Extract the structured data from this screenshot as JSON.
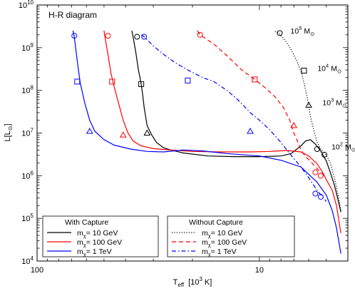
{
  "chart_data": {
    "type": "line",
    "title": "H-R diagram",
    "xlabel": "T_eff [10^3 K]",
    "ylabel": "L[L_sun]",
    "x_scale": "log",
    "y_scale": "log",
    "xlim": [
      100,
      4
    ],
    "ylim": [
      10000,
      10000000000
    ],
    "x_tick_labels": [
      {
        "value": 100,
        "label": "100"
      },
      {
        "value": 10,
        "label": "10"
      }
    ],
    "y_tick_labels": [
      {
        "value": 10000,
        "base": "10",
        "exp": "4"
      },
      {
        "value": 100000,
        "base": "10",
        "exp": "5"
      },
      {
        "value": 1000000,
        "base": "10",
        "exp": "6"
      },
      {
        "value": 10000000,
        "base": "10",
        "exp": "7"
      },
      {
        "value": 100000000,
        "base": "10",
        "exp": "8"
      },
      {
        "value": 1000000000,
        "base": "10",
        "exp": "9"
      },
      {
        "value": 10000000000,
        "base": "10",
        "exp": "10"
      }
    ],
    "series": [
      {
        "name": "m_χ = 10 GeV (with capture)",
        "color": "#000000",
        "dash": "solid",
        "points": [
          [
            37.5,
            2500000000
          ],
          [
            37,
            1800000000
          ],
          [
            36,
            800000000
          ],
          [
            35,
            300000000
          ],
          [
            34,
            140000000
          ],
          [
            33.5,
            80000000
          ],
          [
            33,
            40000000
          ],
          [
            32,
            15000000
          ],
          [
            30.5,
            9000000
          ],
          [
            29,
            6000000
          ],
          [
            27,
            4500000
          ],
          [
            25,
            4000000
          ],
          [
            22,
            3400000
          ],
          [
            17,
            2900000
          ],
          [
            13,
            2800000
          ],
          [
            10,
            2800000
          ],
          [
            8,
            2900000
          ],
          [
            7.2,
            3300000
          ],
          [
            6.5,
            5000000
          ],
          [
            6.2,
            6500000
          ],
          [
            5.9,
            7000000
          ],
          [
            5.6,
            5500000
          ],
          [
            5.3,
            3800000
          ],
          [
            5,
            2200000
          ],
          [
            4.8,
            1200000
          ],
          [
            4.6,
            600000
          ],
          [
            4.45,
            300000
          ],
          [
            4.3,
            140000
          ]
        ],
        "markers": [
          {
            "shape": "circle",
            "x": 35.5,
            "y": 1800000000
          },
          {
            "shape": "square",
            "x": 34,
            "y": 140000000
          },
          {
            "shape": "triangle",
            "x": 32,
            "y": 10000000
          }
        ]
      },
      {
        "name": "m_χ = 100 GeV (with capture)",
        "color": "#ff0000",
        "dash": "solid",
        "points": [
          [
            50,
            2500000000
          ],
          [
            49.5,
            1800000000
          ],
          [
            48,
            700000000
          ],
          [
            46.5,
            250000000
          ],
          [
            45,
            120000000
          ],
          [
            43,
            50000000
          ],
          [
            41,
            20000000
          ],
          [
            39,
            10000000
          ],
          [
            37,
            6500000
          ],
          [
            34,
            5000000
          ],
          [
            30,
            4300000
          ],
          [
            25,
            4000000
          ],
          [
            20,
            3700000
          ],
          [
            15,
            3600000
          ],
          [
            11,
            3600000
          ],
          [
            9,
            3700000
          ],
          [
            7.5,
            3900000
          ],
          [
            6.5,
            3600000
          ],
          [
            6,
            2900000
          ],
          [
            5.5,
            1900000
          ],
          [
            5.2,
            1200000
          ],
          [
            5,
            800000
          ],
          [
            4.7,
            450000
          ],
          [
            4.5,
            200000
          ],
          [
            4.3,
            45000
          ]
        ],
        "markers": [
          {
            "shape": "circle",
            "x": 48,
            "y": 1900000000
          },
          {
            "shape": "square",
            "x": 46,
            "y": 160000000
          },
          {
            "shape": "triangle",
            "x": 41,
            "y": 9000000
          }
        ]
      },
      {
        "name": "m_χ = 1 TeV (with capture)",
        "color": "#0000ff",
        "dash": "solid",
        "points": [
          [
            69,
            2500000000
          ],
          [
            68,
            1800000000
          ],
          [
            66,
            500000000
          ],
          [
            64,
            150000000
          ],
          [
            61,
            50000000
          ],
          [
            58,
            20000000
          ],
          [
            55,
            11000000
          ],
          [
            50,
            7000000
          ],
          [
            45,
            5200000
          ],
          [
            38,
            4200000
          ],
          [
            32,
            3700000
          ],
          [
            27,
            3600000
          ],
          [
            22,
            4000000
          ],
          [
            18,
            3800000
          ],
          [
            14,
            3300000
          ],
          [
            10,
            2900000
          ],
          [
            8,
            2300000
          ],
          [
            6.5,
            1600000
          ],
          [
            5.5,
            700000
          ],
          [
            5,
            350000
          ],
          [
            4.7,
            150000
          ],
          [
            4.5,
            60000
          ],
          [
            4.3,
            15000
          ]
        ],
        "markers": [
          {
            "shape": "circle",
            "x": 68,
            "y": 1900000000
          },
          {
            "shape": "square",
            "x": 66,
            "y": 160000000
          },
          {
            "shape": "triangle",
            "x": 58,
            "y": 11000000
          }
        ]
      },
      {
        "name": "m_χ = 10 GeV (without capture)",
        "color": "#000000",
        "dash": "dotted",
        "points": [
          [
            8.5,
            2400000000
          ],
          [
            8.2,
            2200000000
          ],
          [
            7.6,
            1400000000
          ],
          [
            7.2,
            900000000
          ],
          [
            6.8,
            500000000
          ],
          [
            6.5,
            280000000
          ],
          [
            6.3,
            150000000
          ],
          [
            6.1,
            70000000
          ],
          [
            6,
            45000000
          ],
          [
            5.9,
            25000000
          ],
          [
            5.7,
            12000000
          ],
          [
            5.5,
            6000000
          ],
          [
            5.3,
            4200000
          ],
          [
            5,
            3000000
          ],
          [
            4.8,
            2000000
          ],
          [
            4.6,
            900000
          ],
          [
            4.45,
            400000
          ],
          [
            4.3,
            150000
          ]
        ],
        "markers": [
          {
            "shape": "circle",
            "x": 8.1,
            "y": 2200000000
          },
          {
            "shape": "square",
            "x": 6.3,
            "y": 290000000
          },
          {
            "shape": "triangle",
            "x": 6,
            "y": 45000000
          },
          {
            "shape": "circle",
            "x": 5.5,
            "y": 4200000
          },
          {
            "shape": "circle",
            "x": 5.1,
            "y": 3100000
          }
        ]
      },
      {
        "name": "m_χ = 100 GeV (without capture)",
        "color": "#ff0000",
        "dash": "dashed",
        "points": [
          [
            19,
            2500000000
          ],
          [
            18.5,
            2000000000
          ],
          [
            16,
            1200000000
          ],
          [
            14,
            650000000
          ],
          [
            12,
            300000000
          ],
          [
            10.5,
            180000000
          ],
          [
            9.5,
            120000000
          ],
          [
            8.5,
            70000000
          ],
          [
            7.8,
            40000000
          ],
          [
            7.3,
            20000000
          ],
          [
            7,
            10000000
          ],
          [
            6.7,
            6000000
          ],
          [
            6.5,
            4000000
          ],
          [
            6.2,
            2800000
          ],
          [
            5.9,
            2200000
          ],
          [
            5.6,
            1600000
          ],
          [
            5.3,
            1200000
          ],
          [
            5,
            900000
          ]
        ],
        "markers": [
          {
            "shape": "circle",
            "x": 18.5,
            "y": 2000000000
          },
          {
            "shape": "square",
            "x": 10.5,
            "y": 180000000
          },
          {
            "shape": "triangle",
            "x": 7,
            "y": 15000000
          },
          {
            "shape": "circle",
            "x": 5.6,
            "y": 1200000
          },
          {
            "shape": "circle",
            "x": 5.3,
            "y": 1000000
          }
        ]
      },
      {
        "name": "m_χ = 1 TeV (without capture)",
        "color": "#0000ff",
        "dash": "dashdot",
        "points": [
          [
            34,
            2000000000
          ],
          [
            33,
            1800000000
          ],
          [
            30,
            1100000000
          ],
          [
            27,
            700000000
          ],
          [
            24,
            450000000
          ],
          [
            21,
            300000000
          ],
          [
            18,
            200000000
          ],
          [
            16,
            160000000
          ],
          [
            14,
            100000000
          ],
          [
            12.5,
            60000000
          ],
          [
            11,
            30000000
          ],
          [
            10,
            20000000
          ],
          [
            9,
            12000000
          ],
          [
            8,
            6000000
          ],
          [
            7.2,
            3000000
          ],
          [
            6.5,
            1600000
          ],
          [
            6,
            900000
          ],
          [
            5.5,
            450000
          ],
          [
            5.2,
            320000
          ],
          [
            5,
            250000
          ]
        ],
        "markers": [
          {
            "shape": "circle",
            "x": 33,
            "y": 1800000000
          },
          {
            "shape": "square",
            "x": 21,
            "y": 170000000
          },
          {
            "shape": "triangle",
            "x": 11,
            "y": 11000000
          },
          {
            "shape": "circle",
            "x": 5.6,
            "y": 380000
          },
          {
            "shape": "circle",
            "x": 5.3,
            "y": 320000
          }
        ]
      }
    ],
    "annotations": [
      {
        "base": "10",
        "exp": "5",
        "unit": "M",
        "sub": "⊙",
        "x": 7.8,
        "y": 2400000000
      },
      {
        "base": "10",
        "exp": "4",
        "unit": "M",
        "sub": "⊙",
        "x": 5.9,
        "y": 320000000
      },
      {
        "base": "10",
        "exp": "3",
        "unit": "M",
        "sub": "⊙",
        "x": 5.6,
        "y": 50000000
      },
      {
        "base": "10",
        "exp": "2",
        "unit": "M",
        "sub": "⊙",
        "x": 5.1,
        "y": 4600000
      }
    ],
    "legends": [
      {
        "title": "With Capture",
        "placement": "bottom-left",
        "entries": [
          {
            "series": 0,
            "text": "m",
            "sub": "χ",
            "rest": "= 10 GeV"
          },
          {
            "series": 1,
            "text": "m",
            "sub": "χ",
            "rest": "= 100 GeV"
          },
          {
            "series": 2,
            "text": "m",
            "sub": "χ",
            "rest": "= 1 TeV"
          }
        ]
      },
      {
        "title": "Without Capture",
        "placement": "bottom-right",
        "entries": [
          {
            "series": 3,
            "text": "m",
            "sub": "χ",
            "rest": "= 10 GeV"
          },
          {
            "series": 4,
            "text": "m",
            "sub": "χ",
            "rest": "= 100 GeV"
          },
          {
            "series": 5,
            "text": "m",
            "sub": "χ",
            "rest": "= 1 TeV"
          }
        ]
      }
    ],
    "axis_text": {
      "ylabel_main": "L[L",
      "ylabel_sub": "⊙",
      "ylabel_close": "]",
      "xlabel_main": "T",
      "xlabel_sub": "eff",
      "xlabel_rest": "[10",
      "xlabel_exp": "3",
      "xlabel_close": "K]"
    }
  }
}
